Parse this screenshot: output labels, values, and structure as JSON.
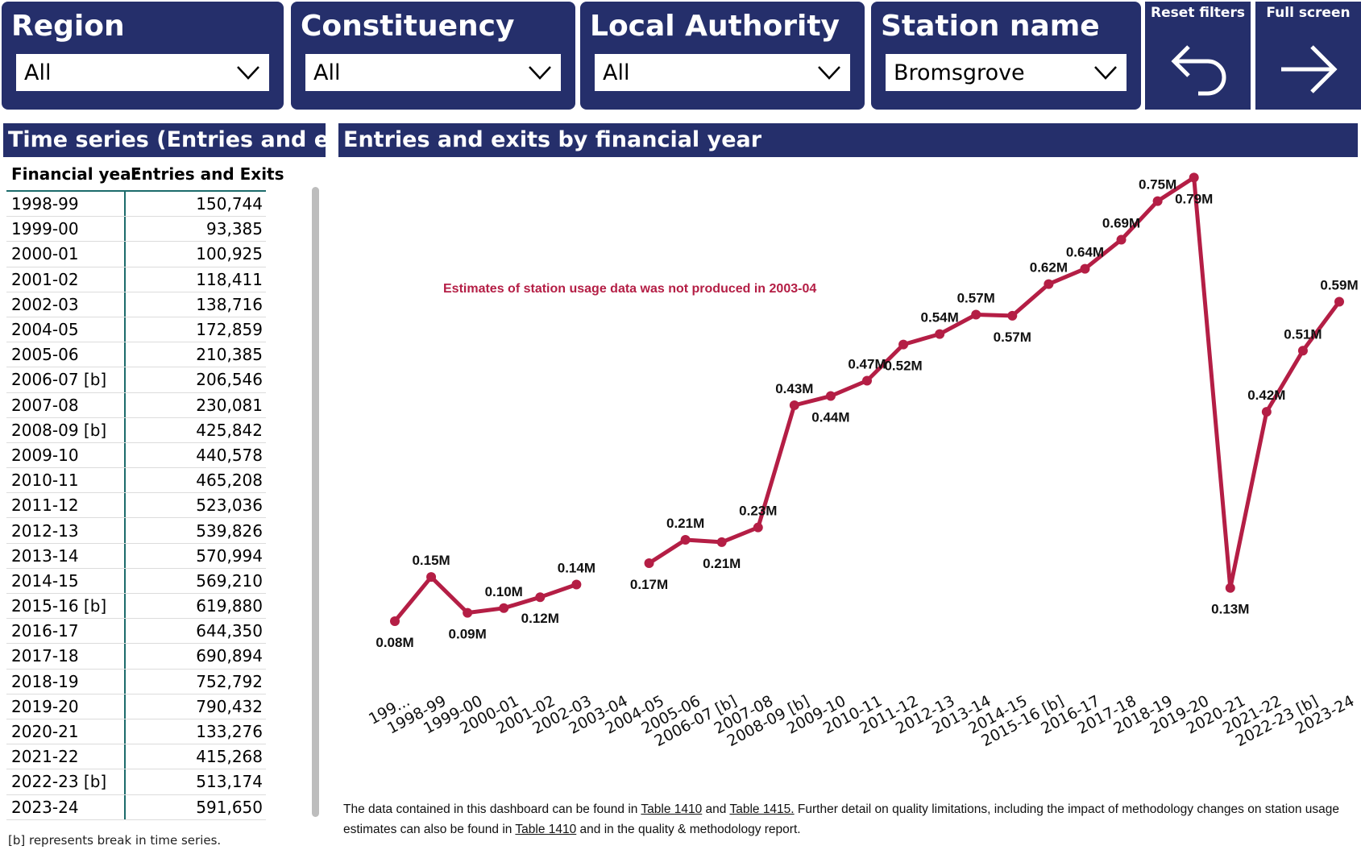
{
  "filters": [
    {
      "label": "Region",
      "value": "All"
    },
    {
      "label": "Constituency",
      "value": "All"
    },
    {
      "label": "Local Authority",
      "value": "All"
    },
    {
      "label": "Station name",
      "value": "Bromsgrove"
    }
  ],
  "buttons": {
    "reset": "Reset filters",
    "fullscreen": "Full screen"
  },
  "table": {
    "title": "Time series (Entries and exits)",
    "col1": "Financial year",
    "col2": "Entries and Exits",
    "rows": [
      [
        "1998-99",
        "150,744"
      ],
      [
        "1999-00",
        "93,385"
      ],
      [
        "2000-01",
        "100,925"
      ],
      [
        "2001-02",
        "118,411"
      ],
      [
        "2002-03",
        "138,716"
      ],
      [
        "2004-05",
        "172,859"
      ],
      [
        "2005-06",
        "210,385"
      ],
      [
        "2006-07 [b]",
        "206,546"
      ],
      [
        "2007-08",
        "230,081"
      ],
      [
        "2008-09 [b]",
        "425,842"
      ],
      [
        "2009-10",
        "440,578"
      ],
      [
        "2010-11",
        "465,208"
      ],
      [
        "2011-12",
        "523,036"
      ],
      [
        "2012-13",
        "539,826"
      ],
      [
        "2013-14",
        "570,994"
      ],
      [
        "2014-15",
        "569,210"
      ],
      [
        "2015-16 [b]",
        "619,880"
      ],
      [
        "2016-17",
        "644,350"
      ],
      [
        "2017-18",
        "690,894"
      ],
      [
        "2018-19",
        "752,792"
      ],
      [
        "2019-20",
        "790,432"
      ],
      [
        "2020-21",
        "133,276"
      ],
      [
        "2021-22",
        "415,268"
      ],
      [
        "2022-23 [b]",
        "513,174"
      ],
      [
        "2023-24",
        "591,650"
      ]
    ],
    "note": "[b] represents break in time series."
  },
  "chart_data": {
    "type": "line",
    "title": "Entries and exits by financial year",
    "annotation": "Estimates of station usage data was not produced in 2003-04",
    "categories": [
      "199...",
      "1998-99",
      "1999-00",
      "2000-01",
      "2001-02",
      "2002-03",
      "2003-04",
      "2004-05",
      "2005-06",
      "2006-07 [b]",
      "2007-08",
      "2008-09 [b]",
      "2009-10",
      "2010-11",
      "2011-12",
      "2012-13",
      "2013-14",
      "2014-15",
      "2015-16 [b]",
      "2016-17",
      "2017-18",
      "2018-19",
      "2019-20",
      "2020-21",
      "2021-22",
      "2022-23 [b]",
      "2023-24"
    ],
    "values": [
      0.08,
      0.150744,
      0.093385,
      0.100925,
      0.118411,
      0.138716,
      null,
      0.172859,
      0.210385,
      0.206546,
      0.230081,
      0.425842,
      0.440578,
      0.465208,
      0.523036,
      0.539826,
      0.570994,
      0.56921,
      0.61988,
      0.64435,
      0.690894,
      0.752792,
      0.790432,
      0.133276,
      0.415268,
      0.513174,
      0.59165
    ],
    "labels": [
      "0.08M",
      "0.15M",
      "0.09M",
      "0.10M",
      "0.12M",
      "0.14M",
      "",
      "0.17M",
      "0.21M",
      "0.21M",
      "0.23M",
      "0.43M",
      "0.44M",
      "0.47M",
      "0.52M",
      "0.54M",
      "0.57M",
      "0.57M",
      "0.62M",
      "0.64M",
      "0.69M",
      "0.75M",
      "0.79M",
      "0.13M",
      "0.42M",
      "0.51M",
      "0.59M"
    ],
    "label_pos": [
      "below",
      "above",
      "below",
      "above",
      "below",
      "above",
      "",
      "below",
      "above",
      "below",
      "above",
      "above",
      "below",
      "above",
      "below",
      "above",
      "above",
      "below",
      "above",
      "above",
      "above",
      "above",
      "below",
      "below",
      "above",
      "above",
      "above"
    ],
    "ylim": [
      0.0,
      0.8
    ],
    "color": "#b41e45",
    "grid": false
  },
  "footnote": {
    "t1": "The data contained in this dashboard can be found in ",
    "l1": "Table 1410",
    "t2": " and ",
    "l2": "Table 1415.",
    "t3": " Further detail on quality limitations, including the impact of methodology changes on station usage estimates can also be found in ",
    "l3": "Table 1410",
    "t4": " and in the quality & methodology report."
  }
}
